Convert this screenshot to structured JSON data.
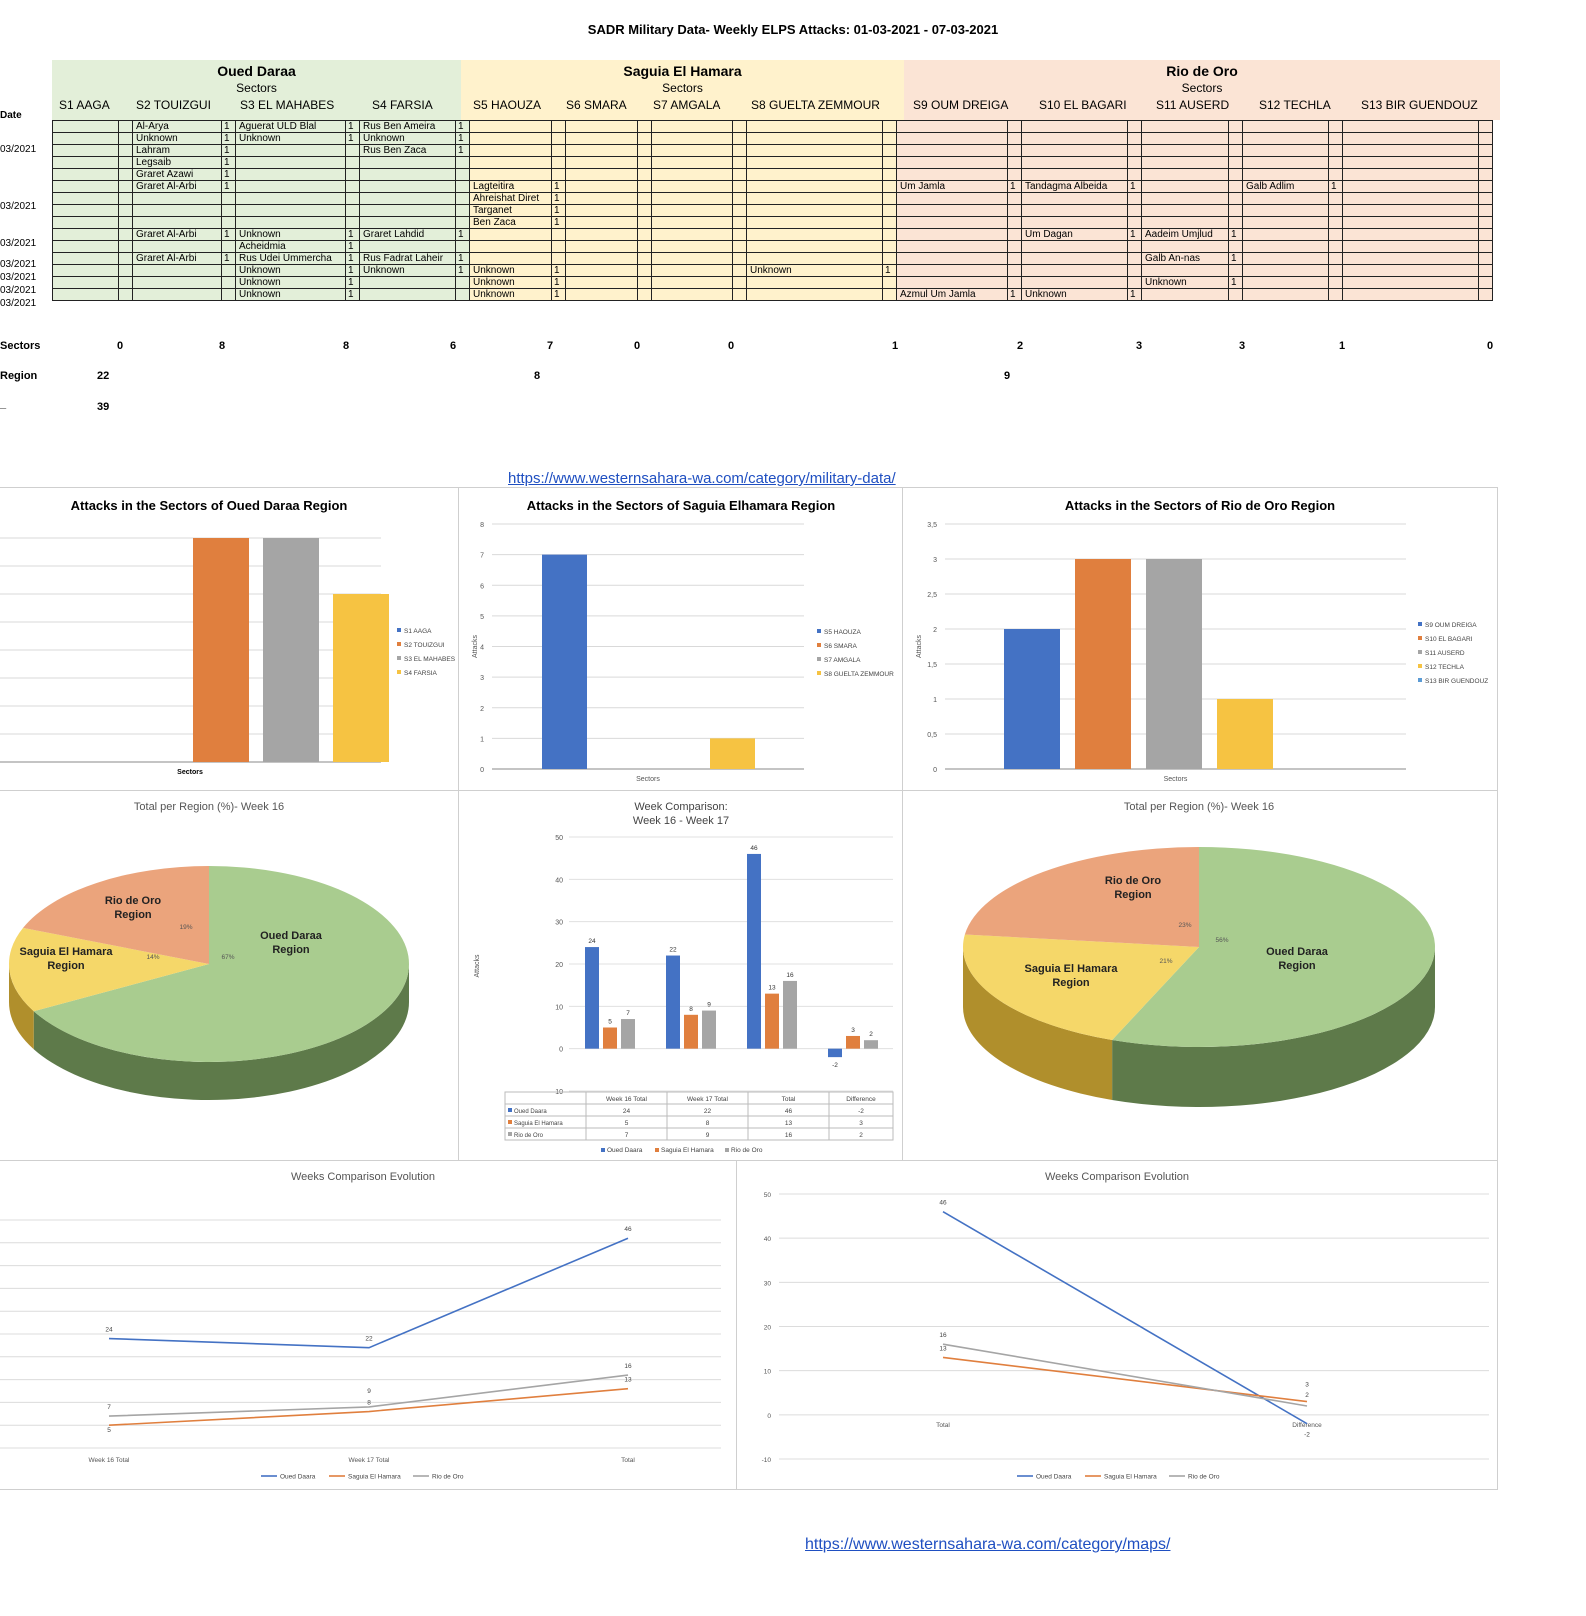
{
  "title": "SADR Military Data- Weekly ELPS Attacks:  01-03-2021 -  07-03-2021",
  "table": {
    "regions": [
      {
        "name": "Oued Daraa",
        "sectors_label": "Sectors"
      },
      {
        "name": "Saguia El Hamara",
        "sectors_label": "Sectors"
      },
      {
        "name": "Rio de Oro",
        "sectors_label": "Sectors"
      }
    ],
    "sectors": [
      "S1 AAGA",
      "S2 TOUIZGUI",
      "S3 EL MAHABES",
      "S4 FARSIA",
      "S5 HAOUZA",
      "S6 SMARA",
      "S7 AMGALA",
      "S8 GUELTA ZEMMOUR",
      "S9 OUM DREIGA",
      "S10 EL BAGARI",
      "S11 AUSERD",
      "S12 TECHLA",
      "S13 BIR GUENDOUZ"
    ],
    "date_label": "Date",
    "dates": [
      "03/2021",
      "03/2021",
      "03/2021",
      "03/2021",
      "03/2021",
      "03/2021",
      "03/2021"
    ],
    "cells": {
      "r0_s2": [
        "Al-Arya",
        "Unknown",
        "Lahram",
        "Legsaib",
        "Graret Azawi"
      ],
      "r0_s3": [
        "Aguerat ULD Blal",
        "Unknown"
      ],
      "r0_s4": [
        "Rus Ben Ameira",
        "Unknown",
        "Rus Ben Zaca"
      ],
      "r1_s2": [
        "Graret Al-Arbi"
      ],
      "r1_s5": [
        "Lagteitira",
        "Ahreishat Diret",
        "Targanet",
        "Ben Zaca"
      ],
      "r1_s9": [
        "Um Jamla"
      ],
      "r1_s10": [
        "Tandagma Albeida"
      ],
      "r1_s12": [
        "Galb Adlim"
      ],
      "r2_s2": [
        "Graret Al-Arbi"
      ],
      "r2_s3": [
        "Unknown",
        "Acheidmia"
      ],
      "r2_s4": [
        "Graret Lahdid"
      ],
      "r2_s10": [
        "Um Dagan"
      ],
      "r2_s11": [
        "Aadeim Umjlud"
      ],
      "r3_s2": [
        "Graret Al-Arbi"
      ],
      "r3_s3": [
        "Rus Udei Ummercha"
      ],
      "r3_s4": [
        "Rus Fadrat Laheir"
      ],
      "r3_s11": [
        "Galb An-nas"
      ],
      "r4_s3": [
        "Unknown"
      ],
      "r4_s4": [
        "Unknown"
      ],
      "r4_s5": [
        "Unknown"
      ],
      "r4_s8": [
        "Unknown"
      ],
      "r5_s3": [
        "Unknown"
      ],
      "r5_s5": [
        "Unknown"
      ],
      "r5_s11": [
        "Unknown"
      ],
      "r6_s3": [
        "Unknown"
      ],
      "r6_s5": [
        "Unknown"
      ],
      "r6_s9": [
        "Azmul Um Jamla"
      ],
      "r6_s10": [
        "Unknown"
      ]
    },
    "one": "1"
  },
  "summary": {
    "sectors_label": "Sectors",
    "sector_totals": [
      "0",
      "8",
      "8",
      "6",
      "7",
      "0",
      "0",
      "1",
      "2",
      "3",
      "3",
      "1",
      "0"
    ],
    "region_label": "Region",
    "region_totals": [
      "22",
      "8",
      "9"
    ],
    "total_label": "_",
    "total": "39"
  },
  "links": {
    "military": "https://www.westernsahara-wa.com/category/military-data/",
    "maps": "https://www.westernsahara-wa.com/category/maps/"
  },
  "colors": {
    "blue": "#4472c4",
    "orange": "#e07f3e",
    "gray": "#a5a5a5",
    "yellow": "#f6c342",
    "lightblue": "#5b9bd5",
    "green": "#a9cc8f",
    "pieYellow": "#f5d769",
    "pieOrange": "#eba47c"
  },
  "chart_data": [
    {
      "type": "bar",
      "title": "Attacks in the Sectors of Oued Daraa Region",
      "xlabel": "Sectors",
      "series": [
        {
          "name": "S1 AAGA",
          "values": [
            0
          ]
        },
        {
          "name": "S2 TOUIZGUI",
          "values": [
            8
          ]
        },
        {
          "name": "S3 EL MAHABES",
          "values": [
            8
          ]
        },
        {
          "name": "S4 FARSIA",
          "values": [
            6
          ]
        }
      ],
      "ylim": [
        0,
        8
      ]
    },
    {
      "type": "bar",
      "title": "Attacks in the Sectors of Saguia Elhamara Region",
      "xlabel": "Sectors",
      "ylabel": "Attacks",
      "series": [
        {
          "name": "S5 HAOUZA",
          "values": [
            7
          ]
        },
        {
          "name": "S6 SMARA",
          "values": [
            0
          ]
        },
        {
          "name": "S7 AMGALA",
          "values": [
            0
          ]
        },
        {
          "name": "S8 GUELTA ZEMMOUR",
          "values": [
            1
          ]
        }
      ],
      "yticks": [
        "0",
        "1",
        "2",
        "3",
        "4",
        "5",
        "6",
        "7",
        "8"
      ],
      "ylim": [
        0,
        8
      ]
    },
    {
      "type": "bar",
      "title": "Attacks in the Sectors of Rio de Oro Region",
      "xlabel": "Sectors",
      "ylabel": "Attacks",
      "series": [
        {
          "name": "S9 OUM DREIGA",
          "values": [
            2
          ]
        },
        {
          "name": "S10 EL BAGARI",
          "values": [
            3
          ]
        },
        {
          "name": "S11 AUSERD",
          "values": [
            3
          ]
        },
        {
          "name": "S12 TECHLA",
          "values": [
            1
          ]
        },
        {
          "name": "S13 BIR GUENDOUZ",
          "values": [
            0
          ]
        }
      ],
      "yticks": [
        "0",
        "0,5",
        "1",
        "1,5",
        "2",
        "2,5",
        "3",
        "3,5"
      ],
      "ylim": [
        0,
        3.5
      ]
    },
    {
      "type": "pie",
      "title": "Total per Region (%)- Week 16",
      "slices": [
        {
          "label": "Oued Daraa Region",
          "pct": "67%",
          "value": 67
        },
        {
          "label": "Saguia El Hamara Region",
          "pct": "14%",
          "value": 14
        },
        {
          "label": "Rio de Oro Region",
          "pct": "19%",
          "value": 19
        }
      ]
    },
    {
      "type": "bar",
      "title": "Week Comparison:",
      "subtitle": "Week 16 - Week 17",
      "ylabel": "Attacks",
      "categories": [
        "Week 16 Total",
        "Week 17 Total",
        "Total",
        "Difference"
      ],
      "series": [
        {
          "name": "Oued Daara",
          "values": [
            24,
            22,
            46,
            -2
          ]
        },
        {
          "name": "Saguia El Hamara",
          "values": [
            5,
            8,
            13,
            3
          ]
        },
        {
          "name": "Rio de Oro",
          "values": [
            7,
            9,
            16,
            2
          ]
        }
      ],
      "yticks": [
        "-10",
        "0",
        "10",
        "20",
        "30",
        "40",
        "50"
      ],
      "ylim": [
        -10,
        50
      ]
    },
    {
      "type": "pie",
      "title": "Total per Region (%)- Week 16",
      "slices": [
        {
          "label": "Oued Daraa Region",
          "pct": "56%",
          "value": 56
        },
        {
          "label": "Saguia El Hamara Region",
          "pct": "21%",
          "value": 21
        },
        {
          "label": "Rio de Oro Region",
          "pct": "23%",
          "value": 23
        }
      ]
    },
    {
      "type": "line",
      "title": "Weeks Comparison Evolution",
      "categories": [
        "Week 16 Total",
        "Week 17 Total",
        "Total"
      ],
      "series": [
        {
          "name": "Oued Daara",
          "values": [
            24,
            22,
            46
          ]
        },
        {
          "name": "Saguia El Hamara",
          "values": [
            5,
            8,
            13
          ]
        },
        {
          "name": "Rio de Oro",
          "values": [
            7,
            9,
            16
          ]
        }
      ],
      "ylim": [
        0,
        50
      ]
    },
    {
      "type": "line",
      "title": "Weeks Comparison Evolution",
      "categories": [
        "Total",
        "Difference"
      ],
      "series": [
        {
          "name": "Oued Daara",
          "values": [
            46,
            -2
          ]
        },
        {
          "name": "Saguia El Hamara",
          "values": [
            13,
            3
          ]
        },
        {
          "name": "Rio de Oro",
          "values": [
            16,
            2
          ]
        }
      ],
      "yticks": [
        "-10",
        "0",
        "10",
        "20",
        "30",
        "40",
        "50"
      ],
      "ylim": [
        -10,
        50
      ]
    }
  ]
}
